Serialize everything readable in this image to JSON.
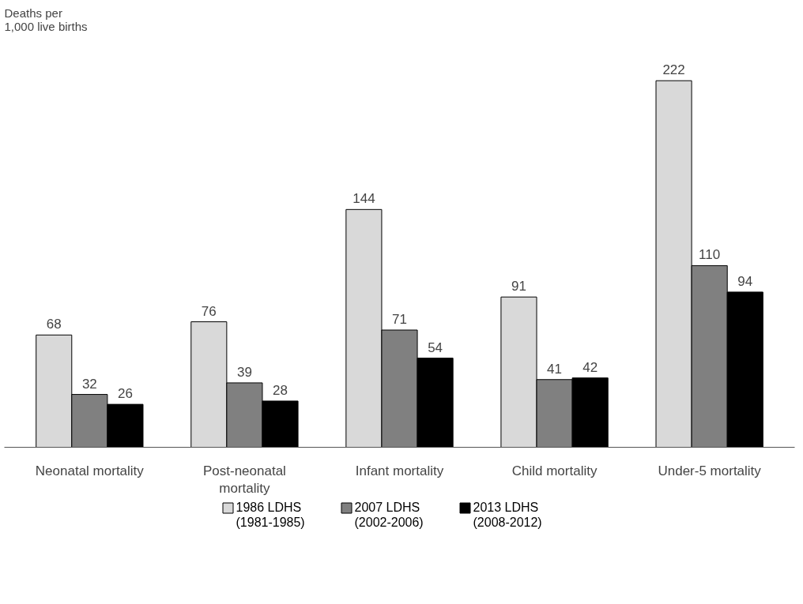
{
  "chart_data": {
    "type": "bar",
    "ylabel": "Deaths per\n1,000 live births",
    "categories": [
      "Neonatal mortality",
      "Post-neonatal\nmortality",
      "Infant mortality",
      "Child mortality",
      "Under-5 mortality"
    ],
    "series": [
      {
        "name": "1986 LDHS\n(1981-1985)",
        "color": "#d9d9d9",
        "values": [
          68,
          76,
          144,
          91,
          222
        ]
      },
      {
        "name": "2007 LDHS\n(2002-2006)",
        "color": "#808080",
        "values": [
          32,
          39,
          71,
          41,
          110
        ]
      },
      {
        "name": "2013 LDHS\n(2008-2012)",
        "color": "#000000",
        "values": [
          26,
          28,
          54,
          42,
          94
        ]
      }
    ],
    "data_labels": true,
    "grid": false,
    "legend": "bottom"
  }
}
